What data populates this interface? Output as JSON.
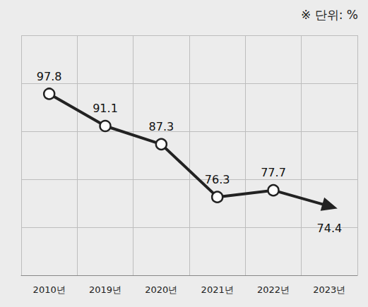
{
  "chart_data": {
    "type": "line",
    "annotation": "※ 단위: %",
    "categories": [
      "2010년",
      "2019년",
      "2020년",
      "2021년",
      "2022년",
      "2023년"
    ],
    "values": [
      97.8,
      91.1,
      87.3,
      76.3,
      77.7,
      74.4
    ],
    "color": "#222222",
    "marker": "circle",
    "ylim": [
      60,
      110
    ],
    "yticks": [
      60,
      70,
      80,
      90,
      100,
      110
    ],
    "grid": true,
    "data_labels": true,
    "tick_labels": "x"
  }
}
